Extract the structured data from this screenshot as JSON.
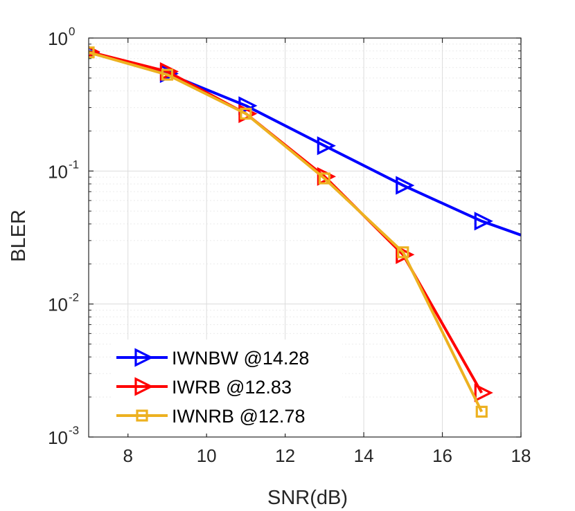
{
  "colors": {
    "background": "#ffffff",
    "axis": "#262626",
    "grid_major": "#dcdcdc",
    "grid_minor": "#ebebeb"
  },
  "chart_data": {
    "type": "line",
    "title": "",
    "xlabel": "SNR(dB)",
    "ylabel": "BLER",
    "xlim": [
      7,
      18
    ],
    "ylim": [
      0.001,
      1
    ],
    "yscale": "log",
    "grid": true,
    "x_ticks": [
      8,
      10,
      12,
      14,
      16,
      18
    ],
    "y_ticks": [
      {
        "value": 1,
        "base": "10",
        "exponent": "0"
      },
      {
        "value": 0.1,
        "base": "10",
        "exponent": "-1"
      },
      {
        "value": 0.01,
        "base": "10",
        "exponent": "-2"
      },
      {
        "value": 0.001,
        "base": "10",
        "exponent": "-3"
      }
    ],
    "legend_position": "bottom-left",
    "series": [
      {
        "name": "IWNBW @14.28",
        "color": "#0000ff",
        "marker": "triangle-right",
        "x": [
          7,
          9,
          11,
          13,
          15,
          17,
          18
        ],
        "y": [
          0.78,
          0.54,
          0.31,
          0.155,
          0.078,
          0.042,
          0.033
        ],
        "marker_x": [
          7,
          9,
          11,
          13,
          15,
          17
        ]
      },
      {
        "name": "IWRB @12.83",
        "color": "#ff0000",
        "marker": "triangle-right",
        "x": [
          7,
          9,
          11,
          13,
          15,
          17
        ],
        "y": [
          0.79,
          0.56,
          0.27,
          0.091,
          0.0235,
          0.00215
        ],
        "marker_x": [
          7,
          9,
          11,
          13,
          15,
          17
        ]
      },
      {
        "name": "IWNRB @12.78",
        "color": "#edb120",
        "marker": "square",
        "x": [
          7,
          9,
          11,
          13,
          15,
          17
        ],
        "y": [
          0.78,
          0.53,
          0.27,
          0.088,
          0.0245,
          0.00155
        ],
        "marker_x": [
          7,
          9,
          11,
          13,
          15,
          17
        ]
      }
    ]
  }
}
